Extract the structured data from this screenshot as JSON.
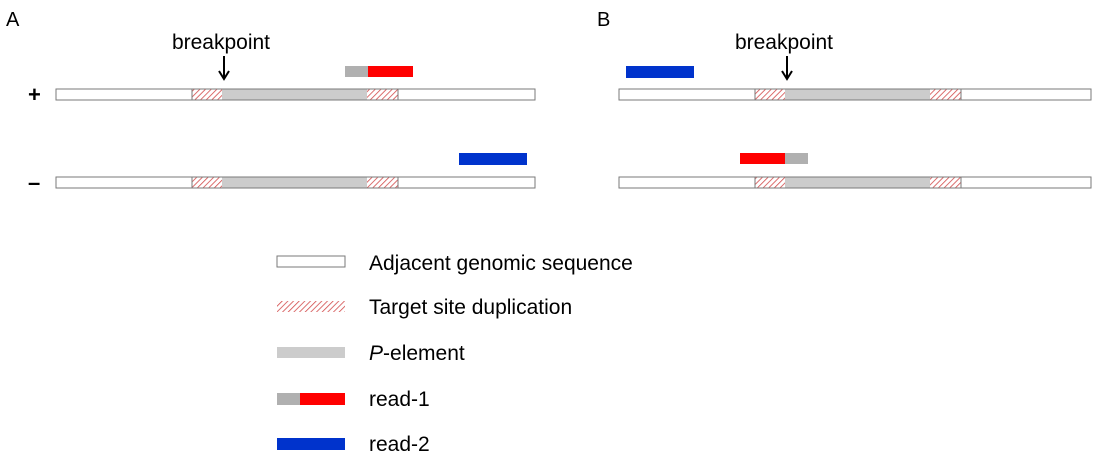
{
  "panels": [
    {
      "label": "A",
      "breakpoint_label": "breakpoint",
      "strands": [
        {
          "sign": "+",
          "read": "read-1",
          "read_orientation": "grey-left-red-right"
        },
        {
          "sign": "–",
          "read": "read-2"
        }
      ]
    },
    {
      "label": "B",
      "breakpoint_label": "breakpoint",
      "strands": [
        {
          "sign": "",
          "read": "read-2"
        },
        {
          "sign": "",
          "read": "read-1",
          "read_orientation": "red-left-grey-right"
        }
      ]
    }
  ],
  "legend": [
    {
      "key": "adjacent",
      "label": "Adjacent genomic sequence"
    },
    {
      "key": "tsd",
      "label": "Target site duplication"
    },
    {
      "key": "pelement",
      "label_italic": "P",
      "label_rest": "-element"
    },
    {
      "key": "read1",
      "label": "read-1"
    },
    {
      "key": "read2",
      "label": "read-2"
    }
  ],
  "colors": {
    "adjacent_fill": "#ffffff",
    "outline": "#7a7a7a",
    "tsd_hatch": "#d24a4a",
    "pelement": "#cccccc",
    "read_grey": "#b0b0b0",
    "read1_red": "#ff0000",
    "read2_blue": "#0033cc"
  }
}
